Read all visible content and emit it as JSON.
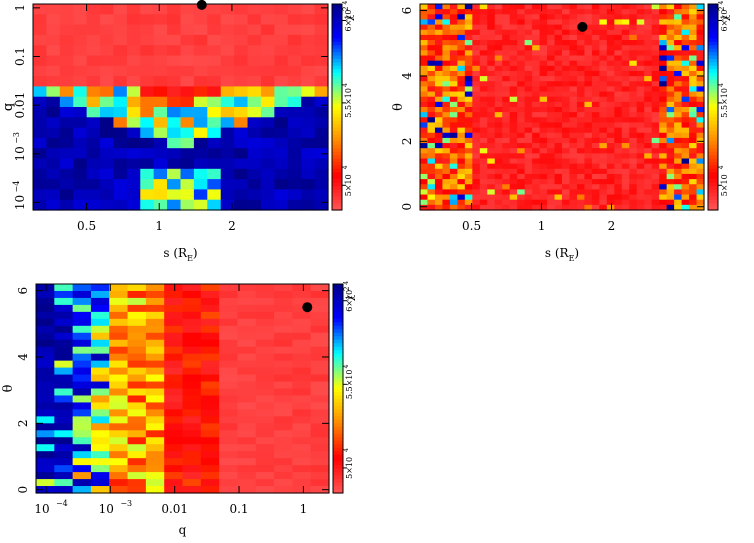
{
  "chart_data": [
    {
      "id": "s-q",
      "type": "heatmap",
      "title": "",
      "xlabel": "s (R",
      "xlabel_sub": "E",
      "xlabel_close": ")",
      "ylabel": "q",
      "x_scale": "log",
      "y_scale": "log",
      "xlim": [
        0.3,
        5.0
      ],
      "ylim": [
        7e-05,
        1.2
      ],
      "xticks": [
        {
          "v": 0.5,
          "label": "0.5"
        },
        {
          "v": 1,
          "label": "1"
        },
        {
          "v": 2,
          "label": "2"
        }
      ],
      "yticks": [
        {
          "v": 1,
          "label": "1"
        },
        {
          "v": 0.1,
          "label": "0.1"
        },
        {
          "v": 0.01,
          "label": "0.01"
        },
        {
          "v": 0.001,
          "label": "10",
          "exp": "−3"
        },
        {
          "v": 0.0001,
          "label": "10",
          "exp": "−4"
        }
      ],
      "best_fit": {
        "x": 1.5,
        "y": 1.15
      },
      "seed": 11
    },
    {
      "id": "s-theta",
      "type": "heatmap",
      "title": "",
      "xlabel": "s (R",
      "xlabel_sub": "E",
      "xlabel_close": ")",
      "ylabel": "θ",
      "x_scale": "log",
      "y_scale": "linear",
      "xlim": [
        0.3,
        5.0
      ],
      "ylim": [
        -0.1,
        6.2
      ],
      "xticks": [
        {
          "v": 0.5,
          "label": "0.5"
        },
        {
          "v": 1,
          "label": "1"
        },
        {
          "v": 2,
          "label": "2"
        }
      ],
      "yticks": [
        {
          "v": 0,
          "label": "0"
        },
        {
          "v": 2,
          "label": "2"
        },
        {
          "v": 4,
          "label": "4"
        },
        {
          "v": 6,
          "label": "6"
        }
      ],
      "best_fit": {
        "x": 1.5,
        "y": 5.5
      },
      "seed": 29
    },
    {
      "id": "q-theta",
      "type": "heatmap",
      "title": "",
      "xlabel": "q",
      "xlabel_sub": "",
      "xlabel_close": "",
      "ylabel": "θ",
      "x_scale": "log",
      "y_scale": "linear",
      "xlim": [
        7e-05,
        2.5
      ],
      "ylim": [
        -0.1,
        6.2
      ],
      "xticks": [
        {
          "v": 0.0001,
          "label": "10",
          "exp": "−4"
        },
        {
          "v": 0.001,
          "label": "10",
          "exp": "−3"
        },
        {
          "v": 0.01,
          "label": "0.01"
        },
        {
          "v": 0.1,
          "label": "0.1"
        },
        {
          "v": 1,
          "label": "1"
        }
      ],
      "yticks": [
        {
          "v": 0,
          "label": "0"
        },
        {
          "v": 2,
          "label": "2"
        },
        {
          "v": 4,
          "label": "4"
        },
        {
          "v": 6,
          "label": "6"
        }
      ],
      "best_fit": {
        "x": 1.15,
        "y": 5.5
      },
      "seed": 47
    }
  ],
  "colorbar": {
    "label": "χ",
    "label_exp": "2",
    "ticks": [
      {
        "v": 5.0,
        "label": "5×10",
        "exp": "4"
      },
      {
        "v": 5.5,
        "label": "5.5×10",
        "exp": "4"
      },
      {
        "v": 6.0,
        "label": "6×10",
        "exp": "4"
      }
    ],
    "range": [
      4.85,
      6.1
    ],
    "colors": [
      "#ff5555",
      "#ff0000",
      "#ff8800",
      "#ffff00",
      "#00ffff",
      "#0000ff",
      "#000088"
    ]
  }
}
